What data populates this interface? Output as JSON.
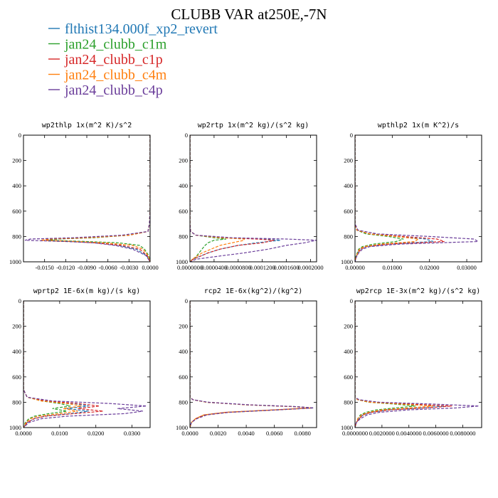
{
  "figure_title": "CLUBB VAR at250E,-7N",
  "legend": [
    {
      "label": "flthist134.000f_xp2_revert",
      "color": "#1f77b4"
    },
    {
      "label": "jan24_clubb_c1m",
      "color": "#2ca02c"
    },
    {
      "label": "jan24_clubb_c1p",
      "color": "#d62728"
    },
    {
      "label": "jan24_clubb_c4m",
      "color": "#ff7f0e"
    },
    {
      "label": "jan24_clubb_c4p",
      "color": "#6a3d9a"
    }
  ],
  "chart_data": [
    {
      "type": "line",
      "title": "wp2thlp  1x(m^2 K)/s^2",
      "xlim": [
        -0.018,
        0.0
      ],
      "ylim": [
        0,
        1000
      ],
      "xticks": [
        "-0.0150",
        "-0.0120",
        "-0.0090",
        "-0.0060",
        "-0.0030",
        "0.0000"
      ],
      "xtick_values": [
        -0.015,
        -0.012,
        -0.009,
        -0.006,
        -0.003,
        0.0
      ],
      "yticks": [
        0,
        200,
        400,
        600,
        800,
        1000
      ],
      "y": [
        0,
        300,
        600,
        700,
        760,
        790,
        810,
        820,
        830,
        840,
        850,
        870,
        900,
        950,
        1000
      ],
      "series": [
        {
          "name": "flthist134.000f_xp2_revert",
          "values": [
            0,
            0,
            0,
            -0.0001,
            -0.0003,
            -0.003,
            -0.009,
            -0.014,
            -0.0155,
            -0.011,
            -0.0075,
            -0.0045,
            -0.002,
            -0.0005,
            0
          ]
        },
        {
          "name": "jan24_clubb_c1m",
          "values": [
            0,
            0,
            0,
            -0.0001,
            -0.0003,
            -0.003,
            -0.008,
            -0.013,
            -0.0145,
            -0.009,
            -0.0045,
            -0.0015,
            -0.0008,
            -0.0002,
            0
          ]
        },
        {
          "name": "jan24_clubb_c1p",
          "values": [
            0,
            0,
            0,
            -0.0001,
            -0.0003,
            -0.003,
            -0.009,
            -0.014,
            -0.0155,
            -0.011,
            -0.008,
            -0.004,
            -0.0015,
            -0.0004,
            0
          ]
        },
        {
          "name": "jan24_clubb_c4m",
          "values": [
            0,
            0,
            0,
            -0.0001,
            -0.0003,
            -0.003,
            -0.009,
            -0.0145,
            -0.0155,
            -0.0105,
            -0.0065,
            -0.0025,
            -0.001,
            -0.0003,
            0
          ]
        },
        {
          "name": "jan24_clubb_c4p",
          "values": [
            0,
            0,
            0,
            -0.0001,
            -0.0003,
            -0.004,
            -0.011,
            -0.017,
            -0.0178,
            -0.012,
            -0.008,
            -0.005,
            -0.0025,
            -0.0006,
            0
          ]
        }
      ]
    },
    {
      "type": "line",
      "title": "wp2rtp  1x(m^2 kg)/(s^2 kg)",
      "xlim": [
        0,
        0.00021
      ],
      "ylim": [
        0,
        1000
      ],
      "xticks": [
        "0.0000000",
        "0.0000400",
        "0.0000800",
        "0.0001200",
        "0.0001600",
        "0.0002000"
      ],
      "xtick_values": [
        0,
        4e-05,
        8e-05,
        0.00012,
        0.00016,
        0.0002
      ],
      "yticks": [
        0,
        200,
        400,
        600,
        800,
        1000
      ],
      "y": [
        0,
        700,
        760,
        790,
        810,
        820,
        830,
        850,
        870,
        900,
        930,
        960,
        980,
        1000
      ],
      "series": [
        {
          "name": "flthist134.000f_xp2_revert",
          "values": [
            0,
            0,
            1e-06,
            1e-05,
            6e-05,
            0.00012,
            0.00015,
            0.00011,
            8e-05,
            5e-05,
            3e-05,
            1.5e-05,
            5e-06,
            0
          ]
        },
        {
          "name": "jan24_clubb_c1m",
          "values": [
            0,
            0,
            1e-06,
            1e-05,
            4e-05,
            6e-05,
            4e-05,
            3e-05,
            2.5e-05,
            2e-05,
            1.5e-05,
            1e-05,
            4e-06,
            0
          ]
        },
        {
          "name": "jan24_clubb_c1p",
          "values": [
            0,
            0,
            1e-06,
            1e-05,
            6e-05,
            0.00011,
            0.00014,
            0.00012,
            8e-05,
            5e-05,
            3e-05,
            1.5e-05,
            5e-06,
            0
          ]
        },
        {
          "name": "jan24_clubb_c4m",
          "values": [
            0,
            0,
            1e-06,
            1e-05,
            5e-05,
            9e-05,
            9e-05,
            7e-05,
            5e-05,
            3.5e-05,
            2e-05,
            1e-05,
            4e-06,
            0
          ]
        },
        {
          "name": "jan24_clubb_c4p",
          "values": [
            0,
            0,
            1e-06,
            1e-05,
            7e-05,
            0.00016,
            0.00021,
            0.00019,
            0.00016,
            0.00013,
            9e-05,
            4e-05,
            1e-05,
            0
          ]
        }
      ]
    },
    {
      "type": "line",
      "title": "wpthlp2  1x(m K^2)/s",
      "xlim": [
        0,
        0.034
      ],
      "ylim": [
        0,
        1000
      ],
      "xticks": [
        "0.00000",
        "0.01000",
        "0.02000",
        "0.03000"
      ],
      "xtick_values": [
        0,
        0.01,
        0.02,
        0.03
      ],
      "yticks": [
        0,
        200,
        400,
        600,
        800,
        1000
      ],
      "y": [
        0,
        700,
        750,
        780,
        800,
        820,
        840,
        860,
        880,
        900,
        930,
        960,
        1000
      ],
      "series": [
        {
          "name": "flthist134.000f_xp2_revert",
          "values": [
            0,
            0,
            0.0005,
            0.004,
            0.012,
            0.019,
            0.021,
            0.008,
            0.003,
            0.0015,
            0.0008,
            0.0003,
            0
          ]
        },
        {
          "name": "jan24_clubb_c1m",
          "values": [
            0,
            0,
            0.0005,
            0.003,
            0.009,
            0.013,
            0.011,
            0.005,
            0.002,
            0.001,
            0.0006,
            0.0002,
            0
          ]
        },
        {
          "name": "jan24_clubb_c1p",
          "values": [
            0,
            0,
            0.0005,
            0.004,
            0.013,
            0.022,
            0.024,
            0.009,
            0.003,
            0.0015,
            0.0008,
            0.0003,
            0
          ]
        },
        {
          "name": "jan24_clubb_c4m",
          "values": [
            0,
            0,
            0.0005,
            0.004,
            0.011,
            0.017,
            0.016,
            0.007,
            0.0025,
            0.0012,
            0.0007,
            0.0003,
            0
          ]
        },
        {
          "name": "jan24_clubb_c4p",
          "values": [
            0,
            0,
            0.0008,
            0.006,
            0.02,
            0.032,
            0.033,
            0.012,
            0.004,
            0.002,
            0.001,
            0.0004,
            0
          ]
        }
      ]
    },
    {
      "type": "line",
      "title": "wprtp2  1E-6x(m kg)/(s kg)",
      "xlim": [
        0,
        0.035
      ],
      "ylim": [
        0,
        1000
      ],
      "xticks": [
        "0.0000",
        "0.0100",
        "0.0200",
        "0.0300"
      ],
      "xtick_values": [
        0,
        0.01,
        0.02,
        0.03
      ],
      "yticks": [
        0,
        200,
        400,
        600,
        800,
        1000
      ],
      "y": [
        0,
        700,
        760,
        790,
        810,
        830,
        850,
        870,
        890,
        910,
        930,
        960,
        1000
      ],
      "series": [
        {
          "name": "flthist134.000f_xp2_revert",
          "values": [
            0,
            0,
            0.001,
            0.006,
            0.014,
            0.018,
            0.012,
            0.018,
            0.013,
            0.006,
            0.003,
            0.001,
            0
          ]
        },
        {
          "name": "jan24_clubb_c1m",
          "values": [
            0,
            0,
            0.001,
            0.005,
            0.01,
            0.013,
            0.008,
            0.012,
            0.007,
            0.003,
            0.0015,
            0.0005,
            0
          ]
        },
        {
          "name": "jan24_clubb_c1p",
          "values": [
            0,
            0,
            0.001,
            0.006,
            0.015,
            0.021,
            0.015,
            0.022,
            0.014,
            0.006,
            0.003,
            0.001,
            0
          ]
        },
        {
          "name": "jan24_clubb_c4m",
          "values": [
            0,
            0,
            0.001,
            0.005,
            0.012,
            0.016,
            0.011,
            0.015,
            0.01,
            0.004,
            0.002,
            0.0007,
            0
          ]
        },
        {
          "name": "jan24_clubb_c4p",
          "values": [
            0,
            0,
            0.001,
            0.008,
            0.024,
            0.034,
            0.026,
            0.033,
            0.028,
            0.012,
            0.005,
            0.0015,
            0
          ]
        }
      ]
    },
    {
      "type": "line",
      "title": "rcp2  1E-6x(kg^2)/(kg^2)",
      "xlim": [
        0,
        0.009
      ],
      "ylim": [
        0,
        1000
      ],
      "xticks": [
        "0.0000",
        "0.0020",
        "0.0040",
        "0.0060",
        "0.0080"
      ],
      "xtick_values": [
        0,
        0.002,
        0.004,
        0.006,
        0.008
      ],
      "yticks": [
        0,
        200,
        400,
        600,
        800,
        1000
      ],
      "y": [
        0,
        760,
        780,
        800,
        820,
        835,
        845,
        860,
        880,
        900,
        930,
        960,
        1000
      ],
      "series": [
        {
          "name": "flthist134.000f_xp2_revert",
          "values": [
            0,
            0,
            0.0002,
            0.0012,
            0.004,
            0.0075,
            0.0087,
            0.006,
            0.0025,
            0.001,
            0.0004,
            0.0001,
            0
          ]
        },
        {
          "name": "jan24_clubb_c1m",
          "values": [
            0,
            0,
            0.0002,
            0.0012,
            0.004,
            0.0075,
            0.0088,
            0.0062,
            0.0027,
            0.0011,
            0.0004,
            0.0001,
            0
          ]
        },
        {
          "name": "jan24_clubb_c1p",
          "values": [
            0,
            0,
            0.0002,
            0.0012,
            0.004,
            0.0074,
            0.0086,
            0.006,
            0.0025,
            0.001,
            0.0004,
            0.0001,
            0
          ]
        },
        {
          "name": "jan24_clubb_c4m",
          "values": [
            0,
            0,
            0.0002,
            0.0012,
            0.004,
            0.0074,
            0.0087,
            0.0061,
            0.0026,
            0.001,
            0.0004,
            0.0001,
            0
          ]
        },
        {
          "name": "jan24_clubb_c4p",
          "values": [
            0,
            0,
            0.0002,
            0.0013,
            0.0042,
            0.0076,
            0.0088,
            0.0063,
            0.0028,
            0.0012,
            0.0005,
            0.0001,
            0
          ]
        }
      ]
    },
    {
      "type": "line",
      "title": "wp2rcp  1E-3x(m^2 kg)/(s^2 kg)",
      "xlim": [
        0,
        0.0094
      ],
      "ylim": [
        0,
        1000
      ],
      "xticks": [
        "0.0000000",
        "0.0020000",
        "0.0040000",
        "0.0060000",
        "0.0080000"
      ],
      "xtick_values": [
        0,
        0.002,
        0.004,
        0.006,
        0.008
      ],
      "yticks": [
        0,
        200,
        400,
        600,
        800,
        1000
      ],
      "y": [
        0,
        760,
        780,
        800,
        815,
        830,
        845,
        860,
        880,
        900,
        930,
        960,
        1000
      ],
      "series": [
        {
          "name": "flthist134.000f_xp2_revert",
          "values": [
            0,
            0,
            0.0002,
            0.0012,
            0.004,
            0.0068,
            0.005,
            0.0025,
            0.0012,
            0.0006,
            0.0003,
            0.0001,
            0
          ]
        },
        {
          "name": "jan24_clubb_c1m",
          "values": [
            0,
            0,
            0.0002,
            0.001,
            0.003,
            0.0045,
            0.003,
            0.0016,
            0.0008,
            0.0004,
            0.0002,
            0.0001,
            0
          ]
        },
        {
          "name": "jan24_clubb_c1p",
          "values": [
            0,
            0,
            0.0002,
            0.0012,
            0.0042,
            0.0072,
            0.0052,
            0.0026,
            0.0012,
            0.0006,
            0.0003,
            0.0001,
            0
          ]
        },
        {
          "name": "jan24_clubb_c4m",
          "values": [
            0,
            0,
            0.0002,
            0.0011,
            0.0035,
            0.0058,
            0.004,
            0.002,
            0.001,
            0.0005,
            0.0002,
            0.0001,
            0
          ]
        },
        {
          "name": "jan24_clubb_c4p",
          "values": [
            0,
            0,
            0.0003,
            0.0018,
            0.006,
            0.0092,
            0.0075,
            0.004,
            0.0018,
            0.0009,
            0.0004,
            0.0001,
            0
          ]
        }
      ]
    }
  ]
}
